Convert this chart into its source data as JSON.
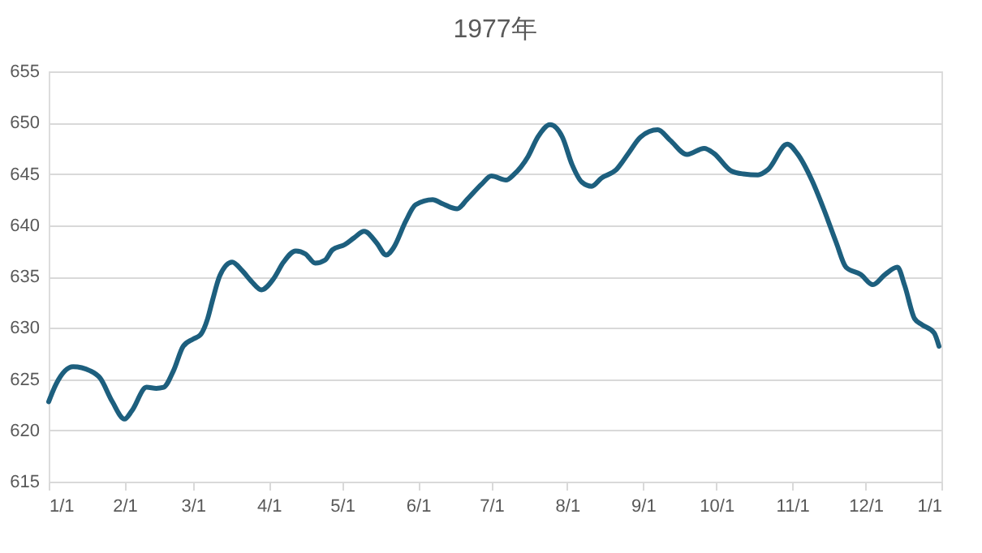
{
  "chart_data": {
    "type": "line",
    "title": "1977年",
    "x": [
      "1977-01-01",
      "1977-01-04",
      "1977-01-11",
      "1977-01-18",
      "1977-01-22",
      "1977-01-27",
      "1977-02-01",
      "1977-02-04",
      "1977-02-10",
      "1977-02-14",
      "1977-02-17",
      "1977-02-21",
      "1977-02-25",
      "1977-03-01",
      "1977-03-04",
      "1977-03-07",
      "1977-03-09",
      "1977-03-12",
      "1977-03-17",
      "1977-03-21",
      "1977-03-25",
      "1977-03-29",
      "1977-04-03",
      "1977-04-07",
      "1977-04-12",
      "1977-04-16",
      "1977-04-20",
      "1977-04-24",
      "1977-04-27",
      "1977-05-02",
      "1977-05-06",
      "1977-05-10",
      "1977-05-15",
      "1977-05-19",
      "1977-05-22",
      "1977-05-27",
      "1977-05-31",
      "1977-06-07",
      "1977-06-11",
      "1977-06-17",
      "1977-06-21",
      "1977-06-27",
      "1977-07-01",
      "1977-07-07",
      "1977-07-10",
      "1977-07-16",
      "1977-07-20",
      "1977-07-25",
      "1977-07-30",
      "1977-08-03",
      "1977-08-07",
      "1977-08-11",
      "1977-08-15",
      "1977-08-21",
      "1977-08-26",
      "1977-08-31",
      "1977-09-07",
      "1977-09-12",
      "1977-09-19",
      "1977-09-26",
      "1977-09-30",
      "1977-10-07",
      "1977-10-12",
      "1977-10-18",
      "1977-10-22",
      "1977-10-30",
      "1977-11-03",
      "1977-11-09",
      "1977-11-14",
      "1977-11-19",
      "1977-11-23",
      "1977-11-29",
      "1977-12-04",
      "1977-12-09",
      "1977-12-14",
      "1977-12-17",
      "1977-12-21",
      "1977-12-24",
      "1977-12-29",
      "1977-12-31"
    ],
    "series": [
      {
        "color": "#1d5f7e",
        "values": [
          622.8,
          624.5,
          626.2,
          625.8,
          625.1,
          622.8,
          621.1,
          621.9,
          624.2,
          624.1,
          624.2,
          625.8,
          628.2,
          628.9,
          629.3,
          630.9,
          632.7,
          635.1,
          636.4,
          635.6,
          634.5,
          633.7,
          634.8,
          636.4,
          637.5,
          637.2,
          636.3,
          636.6,
          637.6,
          638.1,
          638.8,
          639.4,
          638.3,
          637.1,
          637.8,
          640.4,
          642.0,
          642.5,
          642.1,
          641.6,
          642.5,
          644.0,
          644.8,
          644.4,
          644.9,
          646.7,
          648.6,
          649.8,
          648.6,
          645.9,
          644.2,
          643.8,
          644.6,
          645.4,
          647.0,
          648.6,
          649.3,
          648.3,
          646.9,
          647.5,
          647.0,
          645.3,
          645.0,
          644.9,
          645.4,
          647.9,
          647.0,
          644.4,
          641.5,
          638.3,
          635.9,
          635.2,
          634.2,
          635.2,
          635.9,
          634.1,
          630.9,
          630.3,
          629.5,
          628.2
        ]
      }
    ],
    "xlim": [
      "1977-01-01",
      "1978-01-01"
    ],
    "xticks": [
      {
        "value": "1977-01-01",
        "label": "1/1"
      },
      {
        "value": "1977-02-01",
        "label": "2/1"
      },
      {
        "value": "1977-03-01",
        "label": "3/1"
      },
      {
        "value": "1977-04-01",
        "label": "4/1"
      },
      {
        "value": "1977-05-01",
        "label": "5/1"
      },
      {
        "value": "1977-06-01",
        "label": "6/1"
      },
      {
        "value": "1977-07-01",
        "label": "7/1"
      },
      {
        "value": "1977-08-01",
        "label": "8/1"
      },
      {
        "value": "1977-09-01",
        "label": "9/1"
      },
      {
        "value": "1977-10-01",
        "label": "10/1"
      },
      {
        "value": "1977-11-01",
        "label": "11/1"
      },
      {
        "value": "1977-12-01",
        "label": "12/1"
      },
      {
        "value": "1978-01-01",
        "label": "1/1"
      }
    ],
    "ylim": [
      615,
      655
    ],
    "yticks": [
      615,
      620,
      625,
      630,
      635,
      640,
      645,
      650,
      655
    ],
    "grid": "y",
    "legend": false
  }
}
